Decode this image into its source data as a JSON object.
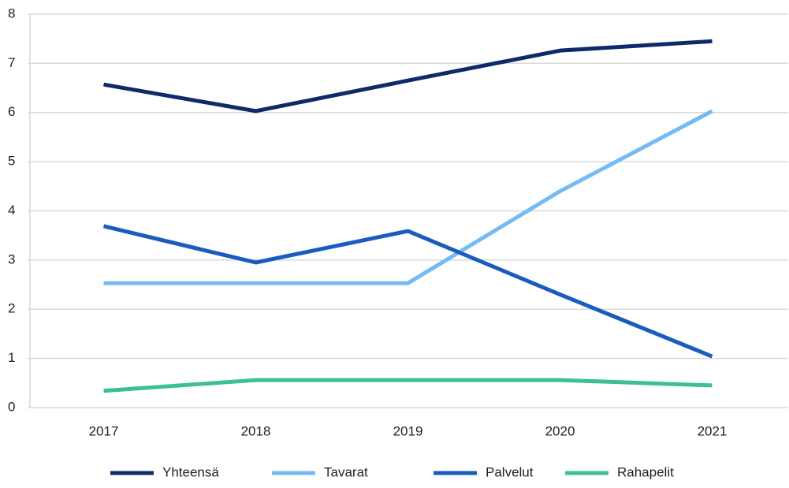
{
  "chart_data": {
    "type": "line",
    "categories": [
      "2017",
      "2018",
      "2019",
      "2020",
      "2021"
    ],
    "series": [
      {
        "name": "Yhteensä",
        "color": "#0d2b6b",
        "values": [
          6.57,
          6.03,
          6.65,
          7.26,
          7.45
        ]
      },
      {
        "name": "Tavarat",
        "color": "#74bbf5",
        "values": [
          2.53,
          2.53,
          2.53,
          4.4,
          6.03
        ]
      },
      {
        "name": "Palvelut",
        "color": "#1a5bbf",
        "values": [
          3.69,
          2.95,
          3.59,
          2.3,
          1.04
        ]
      },
      {
        "name": "Rahapelit",
        "color": "#3cc08f",
        "values": [
          0.34,
          0.56,
          0.56,
          0.56,
          0.45
        ]
      }
    ],
    "ylim": [
      0,
      8
    ],
    "yticks": [
      0,
      1,
      2,
      3,
      4,
      5,
      6,
      7,
      8
    ],
    "grid": true
  }
}
